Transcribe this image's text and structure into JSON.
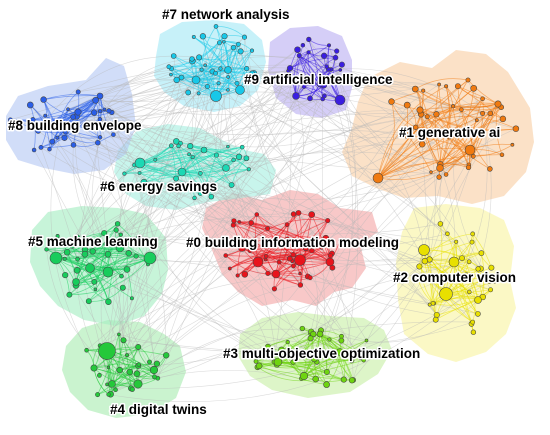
{
  "clusters": [
    {
      "id": "c0",
      "label": "#0 building information modeling",
      "color": "#e8141c",
      "halo": "#f4a6a6"
    },
    {
      "id": "c1",
      "label": "#1 generative ai",
      "color": "#f07a10",
      "halo": "#f9cfa4"
    },
    {
      "id": "c2",
      "label": "#2 computer vision",
      "color": "#e8e000",
      "halo": "#f8f3a2"
    },
    {
      "id": "c3",
      "label": "#3 multi-objective optimization",
      "color": "#6ed410",
      "halo": "#c8efa6"
    },
    {
      "id": "c4",
      "label": "#4 digital twins",
      "color": "#24c83a",
      "halo": "#a9ecb2"
    },
    {
      "id": "c5",
      "label": "#5 machine learning",
      "color": "#18cc5c",
      "halo": "#a4eec2"
    },
    {
      "id": "c6",
      "label": "#6 energy savings",
      "color": "#1cd8b4",
      "halo": "#a6efe0"
    },
    {
      "id": "c7",
      "label": "#7 network analysis",
      "color": "#18c8e8",
      "halo": "#a4e8f6"
    },
    {
      "id": "c8",
      "label": "#8 building envelope",
      "color": "#2a5ee8",
      "halo": "#b4c8f4"
    },
    {
      "id": "c9",
      "label": "#9 artificial intelligence",
      "color": "#3a1ee0",
      "halo": "#bcb0f2"
    }
  ]
}
